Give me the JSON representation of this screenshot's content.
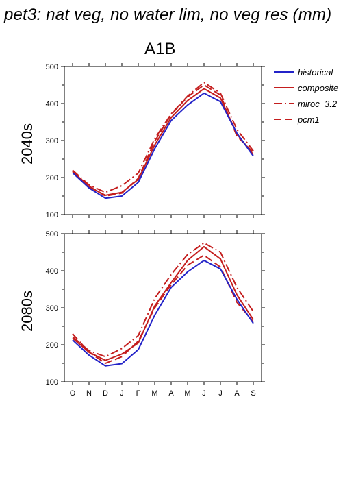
{
  "figure": {
    "title": "pet3: nat veg, no water lim, no veg res (mm)",
    "scenario": "A1B"
  },
  "colors": {
    "historical": "#2323c8",
    "composite": "#c41e1e",
    "miroc_3.2": "#c41e1e",
    "pcm1": "#c41e1e"
  },
  "legend": [
    {
      "key": "historical",
      "label": "historical",
      "style": "solid"
    },
    {
      "key": "composite",
      "label": "composite",
      "style": "solid"
    },
    {
      "key": "miroc_3.2",
      "label": "miroc_3.2",
      "style": "dashdot"
    },
    {
      "key": "pcm1",
      "label": "pcm1",
      "style": "dash"
    }
  ],
  "chart_data": [
    {
      "type": "line",
      "row_label": "2040s",
      "title": "",
      "xlabel": "",
      "ylabel": "",
      "categories": [
        "O",
        "N",
        "D",
        "J",
        "F",
        "M",
        "A",
        "M",
        "J",
        "J",
        "A",
        "S"
      ],
      "ylim": [
        100,
        500
      ],
      "yticks": [
        100,
        200,
        300,
        400,
        500
      ],
      "series": [
        {
          "name": "historical",
          "values": [
            213,
            172,
            144,
            150,
            187,
            278,
            354,
            396,
            428,
            405,
            320,
            258
          ]
        },
        {
          "name": "composite",
          "values": [
            217,
            175,
            152,
            160,
            195,
            288,
            362,
            408,
            440,
            415,
            318,
            262
          ]
        },
        {
          "name": "miroc_3.2",
          "values": [
            220,
            180,
            160,
            178,
            212,
            305,
            372,
            420,
            457,
            428,
            330,
            272
          ]
        },
        {
          "name": "pcm1",
          "values": [
            216,
            177,
            150,
            158,
            198,
            298,
            370,
            418,
            450,
            423,
            312,
            268
          ]
        }
      ]
    },
    {
      "type": "line",
      "row_label": "2080s",
      "title": "",
      "xlabel": "",
      "ylabel": "",
      "categories": [
        "O",
        "N",
        "D",
        "J",
        "F",
        "M",
        "A",
        "M",
        "J",
        "J",
        "A",
        "S"
      ],
      "ylim": [
        100,
        500
      ],
      "yticks": [
        100,
        200,
        300,
        400,
        500
      ],
      "series": [
        {
          "name": "historical",
          "values": [
            213,
            172,
            143,
            149,
            187,
            280,
            355,
            397,
            428,
            405,
            323,
            258
          ]
        },
        {
          "name": "composite",
          "values": [
            218,
            180,
            158,
            175,
            205,
            305,
            368,
            428,
            465,
            432,
            335,
            268
          ]
        },
        {
          "name": "miroc_3.2",
          "values": [
            222,
            184,
            168,
            190,
            225,
            325,
            390,
            444,
            475,
            450,
            355,
            290
          ]
        },
        {
          "name": "pcm1",
          "values": [
            230,
            180,
            150,
            168,
            210,
            300,
            362,
            415,
            442,
            410,
            315,
            262
          ]
        }
      ]
    }
  ]
}
